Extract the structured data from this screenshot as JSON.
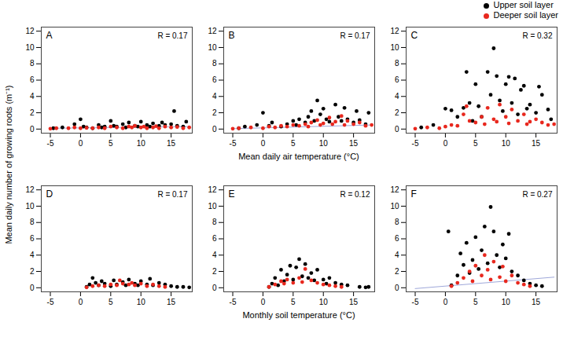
{
  "y_label": "Mean daily number of growing roots (m⁻¹)",
  "chart_data": [
    {
      "type": "scatter",
      "title": "A",
      "annotation": "R = 0.17",
      "xlim": [
        -6.5,
        18.5
      ],
      "xticks": [
        -5,
        0,
        5,
        10,
        15
      ],
      "ylim": [
        -0.5,
        12.5
      ],
      "yticks": [
        0,
        2,
        4,
        6,
        8,
        10,
        12
      ],
      "trend": {
        "x": [
          -5,
          18
        ],
        "y": [
          0.1,
          0.3
        ],
        "color": "#9fa8da"
      },
      "series": [
        {
          "name": "Upper soil layer",
          "color": "#000000",
          "x": [
            -4.5,
            -3,
            -1,
            0,
            0.5,
            1,
            2,
            3,
            3.5,
            4,
            5,
            5.5,
            6,
            7,
            7.5,
            8,
            9,
            9.5,
            10,
            11,
            11.5,
            12,
            13,
            13.5,
            14,
            15,
            15.5,
            16,
            17,
            17.5
          ],
          "values": [
            0.1,
            0.2,
            0.6,
            1.2,
            0.3,
            0.2,
            0.1,
            0.5,
            0.2,
            0.3,
            1.0,
            0.4,
            0.3,
            0.6,
            0.2,
            0.8,
            0.4,
            0.3,
            0.9,
            0.5,
            0.3,
            0.7,
            0.4,
            0.8,
            0.5,
            0.6,
            2.2,
            0.4,
            0.3,
            0.9
          ]
        },
        {
          "name": "Deeper soil layer",
          "color": "#e8281e",
          "x": [
            -5,
            -4,
            -2,
            -1,
            0,
            1,
            2,
            3,
            4,
            5,
            6,
            7,
            8,
            8.5,
            9,
            10,
            10.5,
            11,
            12,
            12.5,
            13,
            14,
            15,
            16,
            17,
            18
          ],
          "values": [
            0.05,
            0.1,
            0.1,
            0.2,
            0.1,
            0.15,
            0.1,
            0.2,
            0.1,
            0.3,
            0.2,
            0.1,
            0.3,
            0.2,
            0.4,
            0.2,
            0.3,
            0.1,
            0.2,
            0.35,
            0.1,
            0.3,
            0.2,
            0.25,
            0.1,
            0.2
          ]
        }
      ]
    },
    {
      "type": "scatter",
      "title": "B",
      "annotation": "R = 0.17",
      "x_label": "Mean daily air temperature (°C)",
      "xlim": [
        -6.5,
        18.5
      ],
      "xticks": [
        -5,
        0,
        5,
        10,
        15
      ],
      "ylim": [
        -0.5,
        12.5
      ],
      "yticks": [
        0,
        2,
        4,
        6,
        8,
        10,
        12
      ],
      "trend": {
        "x": [
          -5,
          18
        ],
        "y": [
          0.05,
          0.5
        ],
        "color": "#9fa8da"
      },
      "series": [
        {
          "name": "Upper soil layer",
          "color": "#000000",
          "x": [
            -4,
            -3,
            -1,
            0,
            1,
            1.5,
            3,
            4,
            5,
            5.5,
            6,
            7,
            7.5,
            8,
            8.5,
            9,
            9.5,
            10,
            10.5,
            11,
            12,
            12.5,
            13,
            13.5,
            14,
            15,
            15.5,
            16,
            17,
            17.5
          ],
          "values": [
            0.1,
            0.3,
            0.5,
            2.0,
            0.4,
            0.8,
            0.3,
            0.6,
            1.0,
            0.5,
            1.2,
            0.8,
            1.5,
            2.2,
            1.0,
            3.5,
            1.8,
            2.5,
            1.2,
            0.9,
            3.0,
            1.5,
            1.0,
            2.6,
            1.2,
            0.8,
            2.2,
            1.1,
            0.6,
            2.0
          ]
        },
        {
          "name": "Deeper soil layer",
          "color": "#e8281e",
          "x": [
            -5,
            -4,
            -2,
            0,
            1,
            2,
            3,
            4,
            5,
            6,
            7,
            7.5,
            8,
            9,
            9.5,
            10,
            11,
            11.5,
            12,
            13,
            13.5,
            14,
            15,
            16,
            17,
            18
          ],
          "values": [
            0.05,
            0.1,
            0.2,
            0.1,
            0.3,
            0.2,
            0.4,
            0.3,
            0.5,
            0.4,
            0.6,
            0.3,
            0.8,
            1.1,
            0.5,
            0.7,
            1.4,
            0.6,
            0.9,
            1.6,
            0.5,
            1.0,
            0.6,
            0.8,
            0.4,
            0.5
          ]
        }
      ]
    },
    {
      "type": "scatter",
      "title": "C",
      "annotation": "R = 0.32",
      "legend": "top-right",
      "xlim": [
        -6.5,
        18.5
      ],
      "xticks": [
        -5,
        0,
        5,
        10,
        15
      ],
      "ylim": [
        -0.5,
        12.5
      ],
      "yticks": [
        0,
        2,
        4,
        6,
        8,
        10,
        12
      ],
      "series": [
        {
          "name": "Upper soil layer",
          "color": "#000000",
          "x": [
            -4,
            -2,
            0,
            1,
            2,
            3,
            3.5,
            4,
            4.5,
            5,
            5.5,
            6,
            7,
            7.5,
            8,
            8.5,
            9,
            9.5,
            10,
            10.5,
            11,
            11.5,
            12,
            12.5,
            13,
            13.5,
            14,
            15,
            15.5,
            16,
            17,
            17.5
          ],
          "values": [
            0.2,
            0.5,
            2.5,
            2.3,
            1.5,
            2.6,
            7.0,
            3.2,
            1.0,
            5.5,
            2.8,
            1.5,
            7.0,
            4.2,
            9.9,
            6.5,
            3.5,
            2.2,
            5.5,
            6.4,
            3.2,
            6.2,
            1.8,
            4.8,
            5.3,
            2.5,
            3.0,
            2.0,
            5.2,
            4.2,
            2.4,
            1.2
          ]
        },
        {
          "name": "Deeper soil layer",
          "color": "#e8281e",
          "x": [
            -5,
            -3,
            -1,
            0,
            1,
            2,
            3,
            3.5,
            4,
            5,
            6,
            6.5,
            7,
            8,
            8.5,
            9,
            10,
            10.5,
            11,
            12,
            13,
            13.5,
            14,
            15,
            16,
            17,
            18
          ],
          "values": [
            0.05,
            0.2,
            0.1,
            0.3,
            0.5,
            0.4,
            1.8,
            2.8,
            1.0,
            0.8,
            1.5,
            0.6,
            2.6,
            1.2,
            0.9,
            3.0,
            1.5,
            0.7,
            2.4,
            1.0,
            1.8,
            0.6,
            0.9,
            1.2,
            0.8,
            0.5,
            0.6
          ]
        }
      ]
    },
    {
      "type": "scatter",
      "title": "D",
      "annotation": "R = 0.17",
      "xlim": [
        -6.5,
        18.5
      ],
      "xticks": [
        -5,
        0,
        5,
        10,
        15
      ],
      "ylim": [
        -0.5,
        12.5
      ],
      "yticks": [
        0,
        2,
        4,
        6,
        8,
        10,
        12
      ],
      "series": [
        {
          "name": "Upper soil layer",
          "color": "#000000",
          "x": [
            1,
            1.5,
            2,
            2.5,
            3,
            3.5,
            4,
            5,
            5.5,
            6,
            7,
            7.5,
            8,
            9,
            9.5,
            10,
            11,
            11.5,
            12,
            13,
            14,
            15,
            16,
            17,
            18
          ],
          "values": [
            0.1,
            0.4,
            1.2,
            0.6,
            0.3,
            0.8,
            0.5,
            0.2,
            0.9,
            0.4,
            0.7,
            0.3,
            1.0,
            0.5,
            0.3,
            0.8,
            0.4,
            1.1,
            0.3,
            0.6,
            0.4,
            0.2,
            0.1,
            0.1,
            0.05
          ]
        },
        {
          "name": "Deeper soil layer",
          "color": "#e8281e",
          "x": [
            1,
            2,
            3,
            4,
            5,
            6,
            6.5,
            7,
            8,
            8.5,
            9,
            10,
            11,
            12,
            13,
            14
          ],
          "values": [
            0.05,
            0.2,
            0.3,
            0.2,
            0.4,
            0.3,
            0.9,
            0.5,
            0.4,
            0.6,
            0.3,
            0.5,
            0.2,
            0.4,
            0.2,
            0.1
          ]
        }
      ]
    },
    {
      "type": "scatter",
      "title": "E",
      "annotation": "R = 0.12",
      "x_label": "Monthly soil temperature (°C)",
      "xlim": [
        -6.5,
        18.5
      ],
      "xticks": [
        -5,
        0,
        5,
        10,
        15
      ],
      "ylim": [
        -0.5,
        12.5
      ],
      "yticks": [
        0,
        2,
        4,
        6,
        8,
        10,
        12
      ],
      "series": [
        {
          "name": "Upper soil layer",
          "color": "#000000",
          "x": [
            1,
            1.5,
            2,
            2.5,
            3,
            3.5,
            4,
            4.5,
            5,
            5.5,
            6,
            6.5,
            7,
            7.5,
            8,
            8.5,
            9,
            10,
            10.5,
            11,
            12,
            13,
            14,
            16,
            17,
            17.5
          ],
          "values": [
            0.1,
            0.5,
            1.2,
            0.3,
            2.2,
            0.8,
            1.6,
            2.7,
            1.0,
            2.5,
            3.5,
            1.4,
            2.9,
            1.2,
            1.8,
            0.9,
            2.2,
            1.0,
            0.5,
            1.2,
            0.6,
            0.4,
            0.3,
            0.1,
            0.05,
            0.1
          ]
        },
        {
          "name": "Deeper soil layer",
          "color": "#e8281e",
          "x": [
            1,
            2,
            3,
            3.5,
            4,
            5,
            6,
            6.5,
            7,
            8,
            9,
            10,
            11,
            12,
            13
          ],
          "values": [
            0.1,
            0.4,
            0.8,
            0.5,
            1.0,
            0.6,
            1.2,
            0.7,
            2.3,
            0.9,
            0.6,
            0.4,
            0.3,
            0.2,
            0.1
          ]
        }
      ]
    },
    {
      "type": "scatter",
      "title": "F",
      "annotation": "R = 0.27",
      "xlim": [
        -6.5,
        18.5
      ],
      "xticks": [
        -5,
        0,
        5,
        10,
        15
      ],
      "ylim": [
        -0.5,
        12.5
      ],
      "yticks": [
        0,
        2,
        4,
        6,
        8,
        10,
        12
      ],
      "trend": {
        "x": [
          -5,
          18
        ],
        "y": [
          -0.1,
          1.3
        ],
        "color": "#9fa8da"
      },
      "series": [
        {
          "name": "Upper soil layer",
          "color": "#000000",
          "x": [
            0.5,
            1,
            2,
            2.5,
            3,
            3.5,
            4,
            4.5,
            5,
            5.5,
            6,
            6.5,
            7,
            7.5,
            8,
            8.5,
            9,
            9.5,
            10,
            10.5,
            11,
            12,
            13,
            14,
            15,
            16
          ],
          "values": [
            6.9,
            0.3,
            1.5,
            4.2,
            2.8,
            5.5,
            1.8,
            3.4,
            6.2,
            2.3,
            4.6,
            7.5,
            3.0,
            9.9,
            6.9,
            4.0,
            2.5,
            5.3,
            3.6,
            6.6,
            2.0,
            1.5,
            0.9,
            0.5,
            0.3,
            0.2
          ]
        },
        {
          "name": "Deeper soil layer",
          "color": "#e8281e",
          "x": [
            1,
            2,
            3,
            4,
            4.5,
            5,
            6,
            6.5,
            7,
            7.5,
            8,
            9,
            9.5,
            10,
            11,
            12,
            13,
            14
          ],
          "values": [
            0.2,
            0.6,
            1.2,
            2.0,
            0.8,
            2.7,
            1.5,
            4.0,
            2.2,
            1.0,
            3.2,
            1.3,
            2.6,
            0.8,
            1.5,
            0.6,
            0.4,
            0.2
          ]
        }
      ]
    }
  ]
}
